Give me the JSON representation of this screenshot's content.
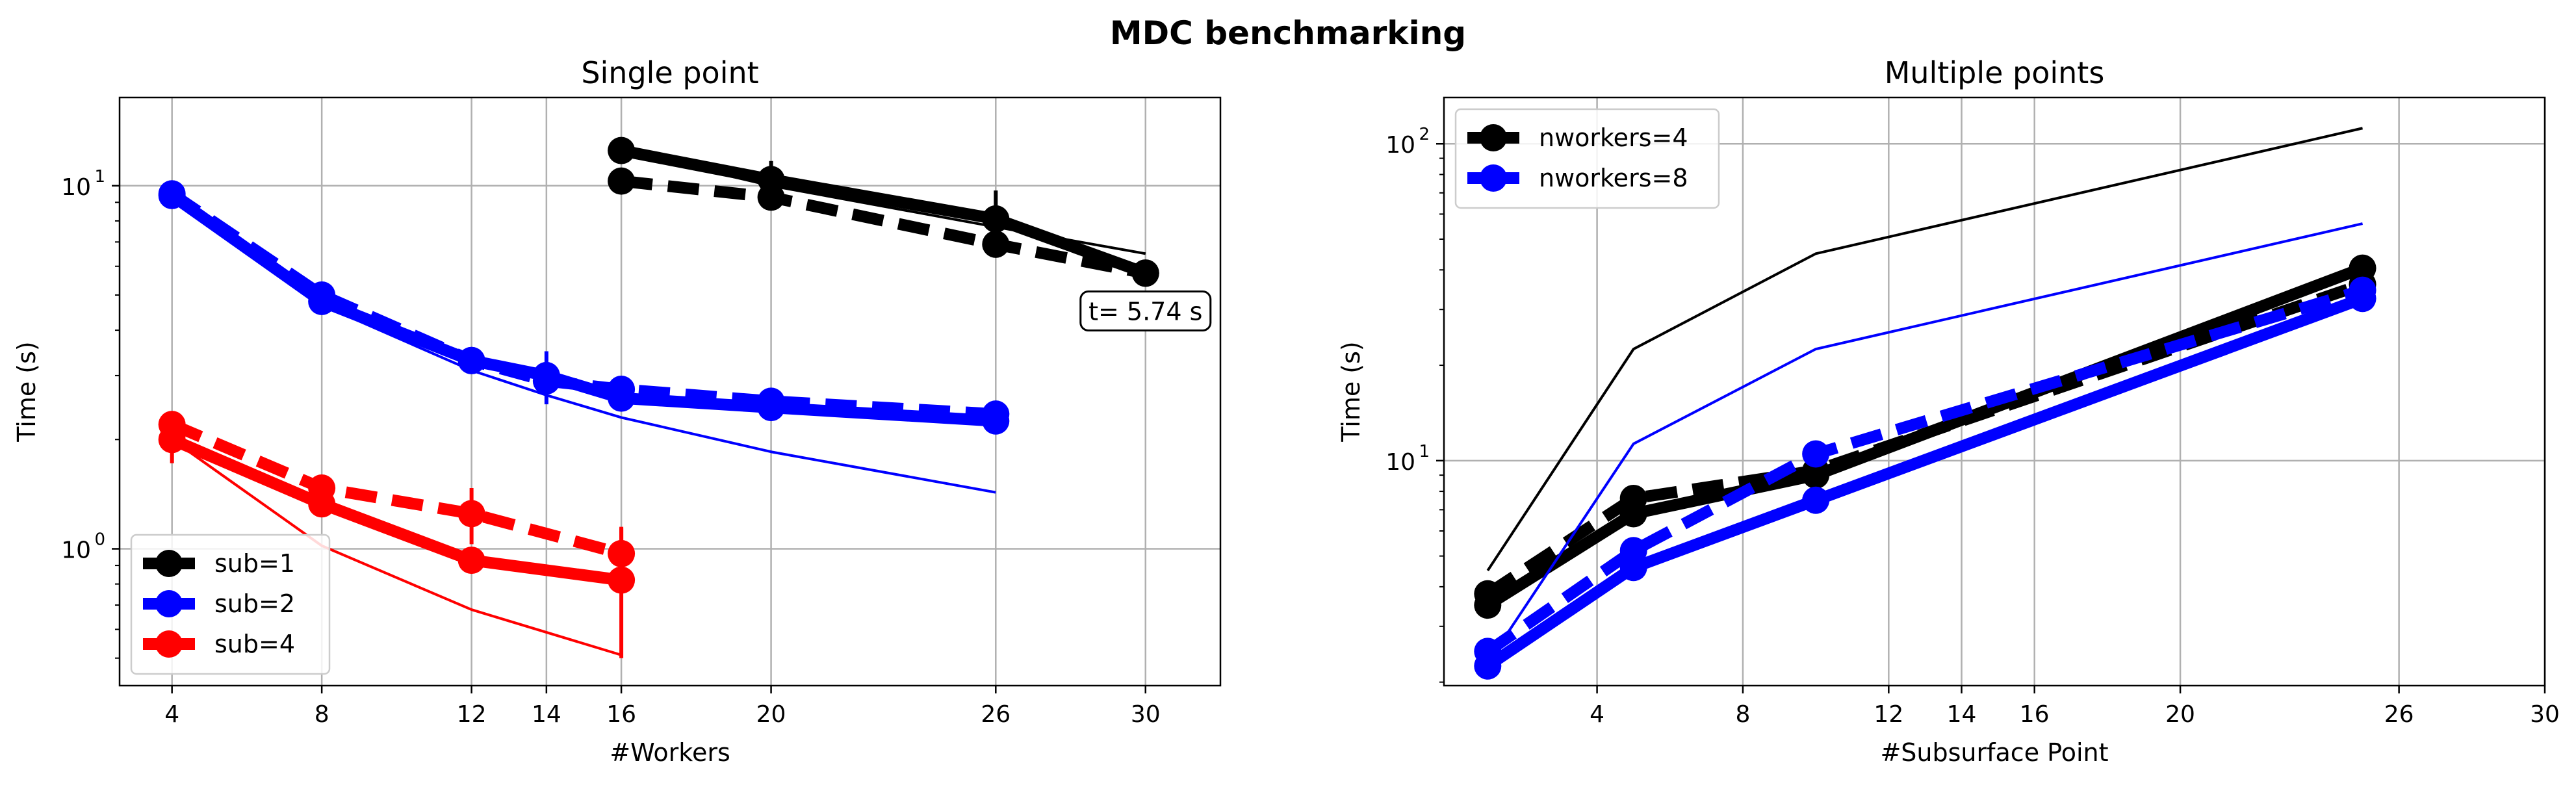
{
  "suptitle": "MDC benchmarking",
  "colors": {
    "sub=1": "#000000",
    "sub=2": "#0000ff",
    "sub=4": "#ff0000",
    "grid": "#b0b0b0"
  },
  "chart_data": [
    {
      "type": "line",
      "title": "Single point",
      "xlabel": "#Workers",
      "ylabel": "Time (s)",
      "xscale": "linear",
      "yscale": "log",
      "xlim": [
        2.6,
        32
      ],
      "ylim": [
        0.42,
        17.5
      ],
      "xticks": [
        4,
        8,
        12,
        14,
        16,
        20,
        26,
        30
      ],
      "yticks": [
        {
          "value": 1,
          "label": "10",
          "sup": "0"
        },
        {
          "value": 10,
          "label": "10",
          "sup": "1"
        }
      ],
      "grid": true,
      "legend": {
        "placement": "lower-left",
        "entries": [
          "sub=1",
          "sub=2",
          "sub=4"
        ]
      },
      "annotation": {
        "text": "t= 5.74 s",
        "x": 30,
        "y": 5.74
      },
      "series": [
        {
          "name": "sub=1",
          "color": "#000000",
          "style": "solid-thick-markers",
          "x": [
            16,
            20,
            26,
            30
          ],
          "y": [
            12.5,
            10.4,
            8.1,
            5.75
          ],
          "err": [
            0,
            1.3,
            1.6,
            0.2
          ]
        },
        {
          "name": "",
          "color": "#000000",
          "style": "dashed-thick-markers",
          "x": [
            16,
            20,
            26,
            30
          ],
          "y": [
            10.3,
            9.3,
            6.9,
            5.74
          ],
          "err": [
            0,
            0,
            0,
            0
          ]
        },
        {
          "name": "",
          "color": "#000000",
          "style": "thin",
          "x": [
            16,
            20,
            26,
            30
          ],
          "y": [
            12.5,
            10.0,
            7.7,
            6.5
          ]
        },
        {
          "name": "sub=2",
          "color": "#0000ff",
          "style": "solid-thick-markers",
          "x": [
            4,
            8,
            12,
            14,
            16,
            20,
            26
          ],
          "y": [
            9.4,
            4.8,
            3.3,
            3.0,
            2.6,
            2.45,
            2.25
          ],
          "err": [
            0,
            0,
            0,
            0.5,
            0,
            0,
            0
          ]
        },
        {
          "name": "",
          "color": "#0000ff",
          "style": "dashed-thick-markers",
          "x": [
            4,
            8,
            12,
            14,
            16,
            20,
            26
          ],
          "y": [
            9.5,
            5.0,
            3.3,
            2.9,
            2.75,
            2.55,
            2.35
          ],
          "err": [
            0,
            0,
            0,
            0,
            0,
            0,
            0
          ]
        },
        {
          "name": "",
          "color": "#0000ff",
          "style": "thin",
          "x": [
            4,
            8,
            12,
            14,
            16,
            20,
            26
          ],
          "y": [
            9.4,
            4.7,
            3.1,
            2.65,
            2.3,
            1.85,
            1.43
          ]
        },
        {
          "name": "sub=4",
          "color": "#ff0000",
          "style": "solid-thick-markers",
          "x": [
            4,
            8,
            12,
            16
          ],
          "y": [
            2.0,
            1.33,
            0.93,
            0.82
          ],
          "err": [
            0.28,
            0,
            0,
            0.32
          ]
        },
        {
          "name": "",
          "color": "#ff0000",
          "style": "dashed-thick-markers",
          "x": [
            4,
            8,
            12,
            16
          ],
          "y": [
            2.2,
            1.47,
            1.25,
            0.97
          ],
          "err": [
            0,
            0,
            0.22,
            0.18
          ]
        },
        {
          "name": "",
          "color": "#ff0000",
          "style": "thin",
          "x": [
            4,
            8,
            12,
            16
          ],
          "y": [
            2.0,
            1.02,
            0.68,
            0.51
          ]
        }
      ]
    },
    {
      "type": "line",
      "title": "Multiple points",
      "xlabel": "#Subsurface Point",
      "ylabel": "Time (s)",
      "xscale": "linear",
      "yscale": "log",
      "xlim": [
        -0.2,
        30
      ],
      "ylim": [
        1.95,
        140
      ],
      "xticks": [
        4,
        8,
        12,
        14,
        16,
        20,
        26,
        30
      ],
      "yticks": [
        {
          "value": 10,
          "label": "10",
          "sup": "1"
        },
        {
          "value": 100,
          "label": "10",
          "sup": "2"
        }
      ],
      "grid": true,
      "legend": {
        "placement": "upper-left",
        "entries": [
          "nworkers=4",
          "nworkers=8"
        ]
      },
      "series": [
        {
          "name": "nworkers=4",
          "color": "#000000",
          "style": "solid-thick-markers",
          "x": [
            1,
            5,
            10,
            25
          ],
          "y": [
            3.5,
            6.8,
            9.0,
            40.5
          ]
        },
        {
          "name": "",
          "color": "#000000",
          "style": "dashed-thick-markers",
          "x": [
            1,
            5,
            10,
            25
          ],
          "y": [
            3.8,
            7.6,
            9.3,
            36.0
          ]
        },
        {
          "name": "",
          "color": "#000000",
          "style": "thin",
          "x": [
            1,
            5,
            10,
            25
          ],
          "y": [
            4.5,
            22.5,
            45.0,
            112.0
          ]
        },
        {
          "name": "nworkers=8",
          "color": "#0000ff",
          "style": "solid-thick-markers",
          "x": [
            1,
            5,
            10,
            25
          ],
          "y": [
            2.25,
            4.6,
            7.5,
            32.5
          ]
        },
        {
          "name": "",
          "color": "#0000ff",
          "style": "dashed-thick-markers",
          "x": [
            1,
            5,
            10,
            25
          ],
          "y": [
            2.5,
            5.2,
            10.5,
            34.5
          ]
        },
        {
          "name": "",
          "color": "#0000ff",
          "style": "thin",
          "x": [
            1,
            5,
            10,
            25
          ],
          "y": [
            2.3,
            11.3,
            22.5,
            56.0
          ]
        }
      ]
    }
  ]
}
